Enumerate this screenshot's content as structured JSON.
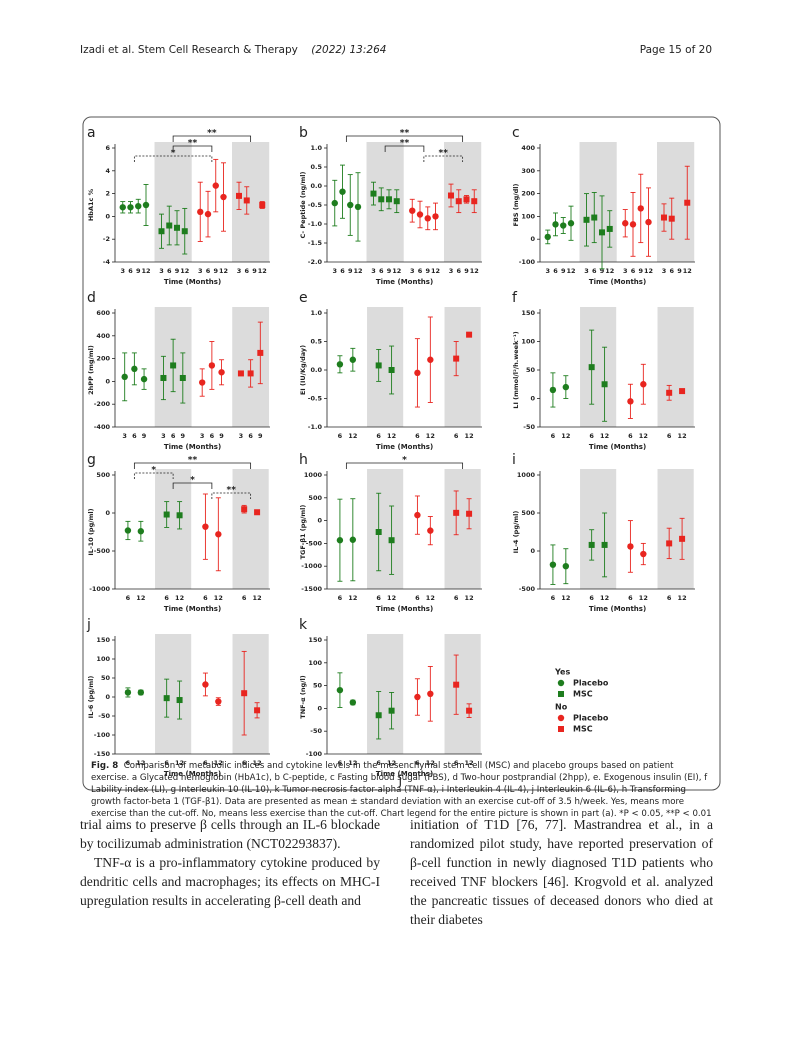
{
  "header": {
    "journal": "Izadi et al. Stem Cell Research & Therapy",
    "issue": "(2022) 13:264",
    "page": "Page 15 of 20"
  },
  "legend": [
    {
      "title": "Yes",
      "items": [
        {
          "name": "Placebo",
          "color": "#1e7d1e",
          "marker": "circle"
        },
        {
          "name": "MSC",
          "color": "#1e7d1e",
          "marker": "square"
        }
      ]
    },
    {
      "title": "No",
      "items": [
        {
          "name": "Placebo",
          "color": "#e8251f",
          "marker": "circle"
        },
        {
          "name": "MSC",
          "color": "#e8251f",
          "marker": "square"
        }
      ]
    }
  ],
  "chart_data": [
    {
      "type": "errorbar",
      "panel": "a",
      "ylabel": "HbA1c %",
      "xlabel": "Time (Months)",
      "categories": [
        "3",
        "6",
        "9",
        "12"
      ],
      "ylim": [
        -4,
        6
      ],
      "yticks": [
        -4,
        -2,
        0,
        2,
        4,
        6
      ],
      "series": [
        {
          "color": "#1e7d1e",
          "marker": "circle",
          "shaded": false,
          "values": [
            0.8,
            0.8,
            0.9,
            1.0
          ],
          "errors": [
            0.5,
            0.5,
            0.6,
            1.8
          ]
        },
        {
          "color": "#1e7d1e",
          "marker": "square",
          "shaded": true,
          "values": [
            -1.3,
            -0.8,
            -1.0,
            -1.3
          ],
          "errors": [
            1.5,
            1.7,
            1.5,
            2.0
          ]
        },
        {
          "color": "#e8251f",
          "marker": "circle",
          "shaded": false,
          "values": [
            0.4,
            0.2,
            2.7,
            1.7
          ],
          "errors": [
            2.6,
            2.0,
            2.3,
            3.0
          ]
        },
        {
          "color": "#e8251f",
          "marker": "square",
          "shaded": true,
          "values": [
            1.8,
            1.4,
            null,
            1.0
          ],
          "errors": [
            1.2,
            1.2,
            null,
            0.3
          ]
        }
      ],
      "annotations": [
        {
          "text": "**",
          "from": 1,
          "to": 3,
          "dashed": false
        },
        {
          "text": "**",
          "from": 1,
          "to": 2,
          "dashed": false
        },
        {
          "text": "*",
          "from": 0,
          "to": 2,
          "dashed": true
        }
      ]
    },
    {
      "type": "errorbar",
      "panel": "b",
      "ylabel": "C- Peptide (ng/ml)",
      "xlabel": "Time (Months)",
      "categories": [
        "3",
        "6",
        "9",
        "12"
      ],
      "ylim": [
        -2,
        1
      ],
      "yticks": [
        {
          "value": -2,
          "label": "-2.0"
        },
        -1.5,
        {
          "value": -1,
          "label": "-1.0"
        },
        -0.5,
        {
          "value": 0,
          "label": "0.0"
        },
        0.5,
        {
          "value": 1,
          "label": "1.0"
        }
      ],
      "series": [
        {
          "color": "#1e7d1e",
          "marker": "circle",
          "shaded": false,
          "values": [
            -0.45,
            -0.15,
            -0.5,
            -0.55
          ],
          "errors": [
            0.6,
            0.7,
            0.8,
            0.9
          ]
        },
        {
          "color": "#1e7d1e",
          "marker": "square",
          "shaded": true,
          "values": [
            -0.2,
            -0.35,
            -0.35,
            -0.4
          ],
          "errors": [
            0.3,
            0.3,
            0.25,
            0.3
          ]
        },
        {
          "color": "#e8251f",
          "marker": "circle",
          "shaded": false,
          "values": [
            -0.65,
            -0.75,
            -0.85,
            -0.8
          ],
          "errors": [
            0.3,
            0.35,
            0.3,
            0.35
          ]
        },
        {
          "color": "#e8251f",
          "marker": "square",
          "shaded": true,
          "values": [
            -0.25,
            -0.4,
            -0.35,
            -0.4
          ],
          "errors": [
            0.3,
            0.3,
            0.1,
            0.3
          ]
        }
      ],
      "annotations": [
        {
          "text": "**",
          "from": 0,
          "to": 3,
          "dashed": false
        },
        {
          "text": "**",
          "from": 1,
          "to": 2,
          "dashed": false
        },
        {
          "text": "**",
          "from": 2,
          "to": 3,
          "dashed": true
        }
      ]
    },
    {
      "type": "errorbar",
      "panel": "c",
      "ylabel": "FBS (mg/dl)",
      "xlabel": "Time (Months)",
      "categories": [
        "3",
        "6",
        "9",
        "12"
      ],
      "ylim": [
        -100,
        400
      ],
      "yticks": [
        -100,
        0,
        100,
        200,
        300,
        400
      ],
      "series": [
        {
          "color": "#1e7d1e",
          "marker": "circle",
          "shaded": false,
          "values": [
            10,
            65,
            60,
            70
          ],
          "errors": [
            30,
            50,
            35,
            75
          ]
        },
        {
          "color": "#1e7d1e",
          "marker": "square",
          "shaded": true,
          "values": [
            85,
            95,
            30,
            45
          ],
          "errors": [
            115,
            110,
            160,
            80
          ]
        },
        {
          "color": "#e8251f",
          "marker": "circle",
          "shaded": false,
          "values": [
            70,
            65,
            135,
            75
          ],
          "errors": [
            60,
            140,
            150,
            150
          ]
        },
        {
          "color": "#e8251f",
          "marker": "square",
          "shaded": true,
          "values": [
            95,
            90,
            null,
            160
          ],
          "errors": [
            60,
            90,
            null,
            160
          ]
        }
      ]
    },
    {
      "type": "errorbar",
      "panel": "d",
      "ylabel": "2hPP (mg/ml)",
      "xlabel": "Time (Months)",
      "categories": [
        "3",
        "6",
        "9"
      ],
      "ylim": [
        -400,
        600
      ],
      "yticks": [
        -400,
        -200,
        0,
        200,
        400,
        600
      ],
      "series": [
        {
          "color": "#1e7d1e",
          "marker": "circle",
          "shaded": false,
          "values": [
            40,
            110,
            20
          ],
          "errors": [
            210,
            140,
            90
          ]
        },
        {
          "color": "#1e7d1e",
          "marker": "square",
          "shaded": true,
          "values": [
            30,
            140,
            30
          ],
          "errors": [
            190,
            230,
            220
          ]
        },
        {
          "color": "#e8251f",
          "marker": "circle",
          "shaded": false,
          "values": [
            -10,
            140,
            80
          ],
          "errors": [
            120,
            210,
            110
          ]
        },
        {
          "color": "#e8251f",
          "marker": "square",
          "shaded": true,
          "values": [
            70,
            70,
            250
          ],
          "errors": [
            10,
            120,
            270
          ]
        }
      ]
    },
    {
      "type": "errorbar",
      "panel": "e",
      "ylabel": "EI (IU/Kg/day)",
      "xlabel": "Time (Months)",
      "categories": [
        "6",
        "12"
      ],
      "ylim": [
        -1,
        1
      ],
      "yticks": [
        {
          "value": -1,
          "label": "-1.0"
        },
        -0.5,
        {
          "value": 0,
          "label": "0.0"
        },
        0.5,
        {
          "value": 1,
          "label": "1.0"
        }
      ],
      "series": [
        {
          "color": "#1e7d1e",
          "marker": "circle",
          "shaded": false,
          "values": [
            0.1,
            0.18
          ],
          "errors": [
            0.15,
            0.2
          ]
        },
        {
          "color": "#1e7d1e",
          "marker": "square",
          "shaded": true,
          "values": [
            0.08,
            0.0
          ],
          "errors": [
            0.28,
            0.42
          ]
        },
        {
          "color": "#e8251f",
          "marker": "circle",
          "shaded": false,
          "values": [
            -0.05,
            0.18
          ],
          "errors": [
            0.6,
            0.75
          ]
        },
        {
          "color": "#e8251f",
          "marker": "square",
          "shaded": true,
          "values": [
            0.2,
            0.62
          ],
          "errors": [
            0.3,
            0
          ]
        }
      ]
    },
    {
      "type": "errorbar",
      "panel": "f",
      "ylabel": "LI (mmol/l²/h.week⁻¹)",
      "xlabel": "Time (Months)",
      "categories": [
        "6",
        "12"
      ],
      "ylim": [
        -50,
        150
      ],
      "yticks": [
        -50,
        0,
        50,
        100,
        150
      ],
      "series": [
        {
          "color": "#1e7d1e",
          "marker": "circle",
          "shaded": false,
          "values": [
            15,
            20
          ],
          "errors": [
            30,
            20
          ]
        },
        {
          "color": "#1e7d1e",
          "marker": "square",
          "shaded": true,
          "values": [
            55,
            25
          ],
          "errors": [
            65,
            65
          ]
        },
        {
          "color": "#e8251f",
          "marker": "circle",
          "shaded": false,
          "values": [
            -5,
            25
          ],
          "errors": [
            30,
            35
          ]
        },
        {
          "color": "#e8251f",
          "marker": "square",
          "shaded": true,
          "values": [
            10,
            13
          ],
          "errors": [
            13,
            0
          ]
        }
      ]
    },
    {
      "type": "errorbar",
      "panel": "g",
      "ylabel": "IL-10 (pg/ml)",
      "xlabel": "Time (Months)",
      "categories": [
        "6",
        "12"
      ],
      "ylim": [
        -1000,
        500
      ],
      "yticks": [
        -1000,
        -500,
        0,
        500
      ],
      "series": [
        {
          "color": "#1e7d1e",
          "marker": "circle",
          "shaded": false,
          "values": [
            -230,
            -240
          ],
          "errors": [
            120,
            130
          ]
        },
        {
          "color": "#1e7d1e",
          "marker": "square",
          "shaded": true,
          "values": [
            -20,
            -30
          ],
          "errors": [
            170,
            180
          ]
        },
        {
          "color": "#e8251f",
          "marker": "circle",
          "shaded": false,
          "values": [
            -180,
            -280
          ],
          "errors": [
            430,
            480
          ]
        },
        {
          "color": "#e8251f",
          "marker": "square",
          "shaded": true,
          "values": [
            50,
            10
          ],
          "errors": [
            50,
            20
          ]
        }
      ],
      "annotations": [
        {
          "text": "**",
          "from": 0,
          "to": 3,
          "dashed": false
        },
        {
          "text": "*",
          "from": 0,
          "to": 1,
          "dashed": true
        },
        {
          "text": "*",
          "from": 1,
          "to": 2,
          "dashed": false
        },
        {
          "text": "**",
          "from": 2,
          "to": 3,
          "dashed": true
        }
      ]
    },
    {
      "type": "errorbar",
      "panel": "h",
      "ylabel": "TGF-β1 (pg/ml)",
      "xlabel": "Time (Months)",
      "categories": [
        "6",
        "12"
      ],
      "ylim": [
        -1500,
        1000
      ],
      "yticks": [
        -1500,
        -1000,
        -500,
        0,
        500,
        1000
      ],
      "series": [
        {
          "color": "#1e7d1e",
          "marker": "circle",
          "shaded": false,
          "values": [
            -430,
            -420
          ],
          "errors": [
            900,
            900
          ]
        },
        {
          "color": "#1e7d1e",
          "marker": "square",
          "shaded": true,
          "values": [
            -250,
            -430
          ],
          "errors": [
            850,
            750
          ]
        },
        {
          "color": "#e8251f",
          "marker": "circle",
          "shaded": false,
          "values": [
            120,
            -220
          ],
          "errors": [
            420,
            310
          ]
        },
        {
          "color": "#e8251f",
          "marker": "square",
          "shaded": true,
          "values": [
            170,
            150
          ],
          "errors": [
            480,
            330
          ]
        }
      ],
      "annotations": [
        {
          "text": "*",
          "from": 0,
          "to": 3,
          "dashed": false
        }
      ]
    },
    {
      "type": "errorbar",
      "panel": "i",
      "ylabel": "IL-4 (pg/ml)",
      "xlabel": "Time (Months)",
      "categories": [
        "6",
        "12"
      ],
      "ylim": [
        -500,
        1000
      ],
      "yticks": [
        -500,
        0,
        500,
        1000
      ],
      "series": [
        {
          "color": "#1e7d1e",
          "marker": "circle",
          "shaded": false,
          "values": [
            -180,
            -200
          ],
          "errors": [
            260,
            230
          ]
        },
        {
          "color": "#1e7d1e",
          "marker": "square",
          "shaded": true,
          "values": [
            80,
            80
          ],
          "errors": [
            200,
            420
          ]
        },
        {
          "color": "#e8251f",
          "marker": "circle",
          "shaded": false,
          "values": [
            60,
            -40
          ],
          "errors": [
            340,
            140
          ]
        },
        {
          "color": "#e8251f",
          "marker": "square",
          "shaded": true,
          "values": [
            100,
            160
          ],
          "errors": [
            200,
            270
          ]
        }
      ]
    },
    {
      "type": "errorbar",
      "panel": "j",
      "ylabel": "IL-6 (pg/ml)",
      "xlabel": "Time (Months)",
      "categories": [
        "6",
        "12"
      ],
      "ylim": [
        -150,
        150
      ],
      "yticks": [
        -150,
        -100,
        -50,
        0,
        50,
        100,
        150
      ],
      "series": [
        {
          "color": "#1e7d1e",
          "marker": "circle",
          "shaded": false,
          "values": [
            12,
            12
          ],
          "errors": [
            12,
            6
          ]
        },
        {
          "color": "#1e7d1e",
          "marker": "square",
          "shaded": true,
          "values": [
            -3,
            -8
          ],
          "errors": [
            50,
            50
          ]
        },
        {
          "color": "#e8251f",
          "marker": "circle",
          "shaded": false,
          "values": [
            33,
            -12
          ],
          "errors": [
            30,
            10
          ]
        },
        {
          "color": "#e8251f",
          "marker": "square",
          "shaded": true,
          "values": [
            10,
            -35
          ],
          "errors": [
            110,
            20
          ]
        }
      ]
    },
    {
      "type": "errorbar",
      "panel": "k",
      "ylabel": "TNF-α (ng/l)",
      "xlabel": "Time (Months)",
      "extra_label": "j",
      "categories": [
        "6",
        "12"
      ],
      "ylim": [
        -100,
        150
      ],
      "yticks": [
        -100,
        -50,
        0,
        50,
        100,
        150
      ],
      "series": [
        {
          "color": "#1e7d1e",
          "marker": "circle",
          "shaded": false,
          "values": [
            40,
            13
          ],
          "errors": [
            38,
            5
          ]
        },
        {
          "color": "#1e7d1e",
          "marker": "square",
          "shaded": true,
          "values": [
            -15,
            -5
          ],
          "errors": [
            52,
            40
          ]
        },
        {
          "color": "#e8251f",
          "marker": "circle",
          "shaded": false,
          "values": [
            25,
            32
          ],
          "errors": [
            40,
            60
          ]
        },
        {
          "color": "#e8251f",
          "marker": "square",
          "shaded": true,
          "values": [
            52,
            -5
          ],
          "errors": [
            65,
            15
          ]
        }
      ]
    }
  ],
  "caption": {
    "label": "Fig. 8",
    "text": "Comparison of metabolic indices and cytokine levels in the mesenchymal stem cell (MSC) and placebo groups based on patient exercise. a Glycated hemoglobin (HbA1c), b C-peptide, c Fasting blood sugar (FBS), d Two-hour postprandial (2hpp), e. Exogenous insulin (EI), f Lability index (LI), g Interleukin 10 (IL-10), k Tumor necrosis factor-alpha (TNF-α), i Interleukin 4 (IL-4), j Interleukin 6 (IL-6), h Transforming growth factor-beta 1 (TGF-β1). Data are presented as mean ± standard deviation with an exercise cut-off of 3.5 h/week. Yes, means more exercise than the cut-off. No, means less exercise than the cut-off. Chart legend for the entire picture is shown in part (a). *P < 0.05, **P < 0.01"
  },
  "body": {
    "left": [
      "trial aims to preserve β cells through an IL-6 blockade by tocilizumab administration (NCT02293837).",
      "TNF-α is a pro-inflammatory cytokine produced by dendritic cells and macrophages; its effects on MHC-I upregulation results in accelerating β-cell death and"
    ],
    "right": [
      "initiation of T1D [76, 77]. Mastrandrea et al., in a randomized pilot study, have reported preservation of β-cell function in newly diagnosed T1D patients who received TNF blockers [46]. Krogvold et al. analyzed the pancreatic tissues of deceased donors who died at their diabetes"
    ]
  }
}
